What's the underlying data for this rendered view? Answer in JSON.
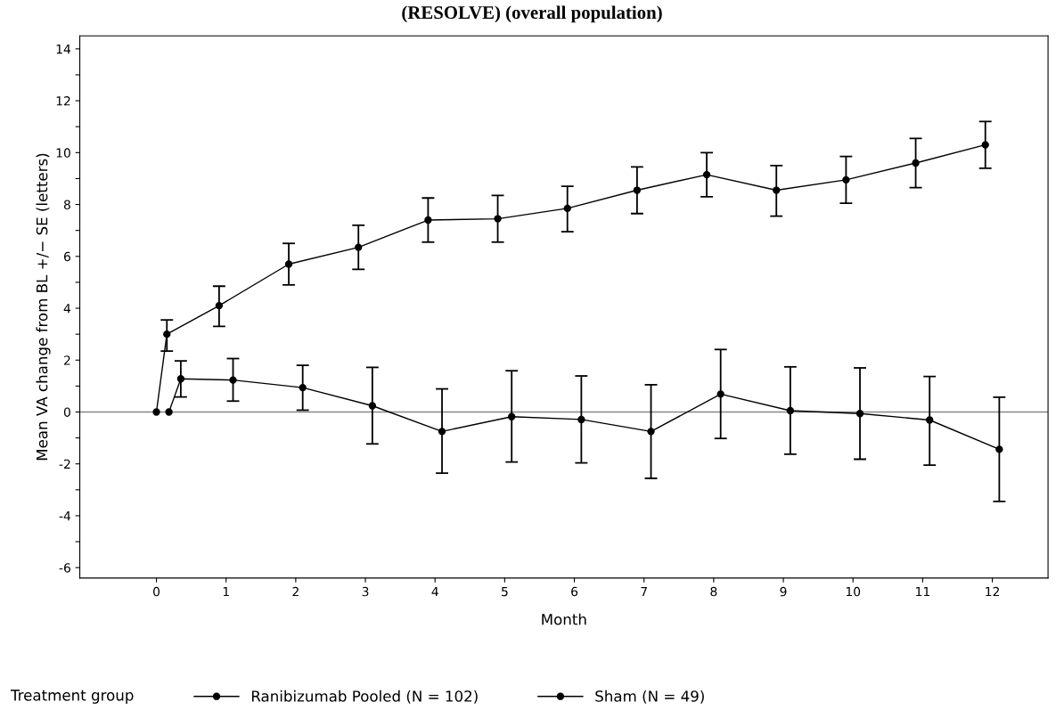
{
  "chart_data": {
    "type": "line",
    "title": "(RESOLVE) (overall population)",
    "xlabel": "Month",
    "ylabel": "Mean VA change from BL +/− SE (letters)",
    "legend_title": "Treatment group",
    "xlim": [
      -1.1,
      12.8
    ],
    "xticks": [
      0,
      1,
      2,
      3,
      4,
      5,
      6,
      7,
      8,
      9,
      10,
      11,
      12
    ],
    "ylim": [
      -6.4,
      14.5
    ],
    "yticks": [
      -6,
      {
        "value": -5,
        "label": null
      },
      -4,
      {
        "value": -3,
        "label": null
      },
      -2,
      {
        "value": -1,
        "label": null
      },
      0,
      {
        "value": 1,
        "label": null
      },
      2,
      {
        "value": 3,
        "label": null
      },
      4,
      {
        "value": 5,
        "label": null
      },
      6,
      {
        "value": 7,
        "label": null
      },
      8,
      {
        "value": 9,
        "label": null
      },
      10,
      {
        "value": 11,
        "label": null
      },
      12,
      {
        "value": 13,
        "label": null
      },
      14
    ],
    "marker": "circle",
    "grid": false,
    "legend": "bottom",
    "ref_lines": [
      {
        "axis": "y",
        "value": 0,
        "color": "#888888"
      }
    ],
    "series": [
      {
        "name": "Ranibizumab Pooled (N = 102)",
        "color": "#000000",
        "x": [
          0,
          0.15,
          0.9,
          1.9,
          2.9,
          3.9,
          4.9,
          5.9,
          6.9,
          7.9,
          8.9,
          9.9,
          10.9,
          11.9
        ],
        "values": [
          0,
          3.0,
          4.1,
          5.7,
          6.35,
          7.4,
          7.45,
          7.85,
          8.55,
          9.15,
          8.55,
          8.95,
          9.6,
          10.3
        ],
        "errors": [
          null,
          [
            2.35,
            3.55
          ],
          [
            3.3,
            4.85
          ],
          [
            4.9,
            6.5
          ],
          [
            5.5,
            7.2
          ],
          [
            6.55,
            8.25
          ],
          [
            6.55,
            8.35
          ],
          [
            6.95,
            8.7
          ],
          [
            7.65,
            9.45
          ],
          [
            8.3,
            10.0
          ],
          [
            7.55,
            9.5
          ],
          [
            8.05,
            9.85
          ],
          [
            8.65,
            10.55
          ],
          [
            9.4,
            11.2
          ]
        ]
      },
      {
        "name": "Sham (N = 49)",
        "color": "#000000",
        "x": [
          0.18,
          0.35,
          1.1,
          2.1,
          3.1,
          4.1,
          5.1,
          6.1,
          7.1,
          8.1,
          9.1,
          10.1,
          11.1,
          12.1
        ],
        "values": [
          0,
          1.28,
          1.23,
          0.94,
          0.24,
          -0.75,
          -0.18,
          -0.29,
          -0.75,
          0.69,
          0.05,
          -0.06,
          -0.31,
          -1.44
        ],
        "errors": [
          null,
          [
            0.58,
            1.97
          ],
          [
            0.42,
            2.06
          ],
          [
            0.07,
            1.8
          ],
          [
            -1.23,
            1.72
          ],
          [
            -2.36,
            0.89
          ],
          [
            -1.93,
            1.59
          ],
          [
            -1.96,
            1.39
          ],
          [
            -2.56,
            1.05
          ],
          [
            -1.02,
            2.41
          ],
          [
            -1.63,
            1.74
          ],
          [
            -1.82,
            1.7
          ],
          [
            -2.05,
            1.37
          ],
          [
            -3.45,
            0.57
          ]
        ]
      }
    ]
  }
}
